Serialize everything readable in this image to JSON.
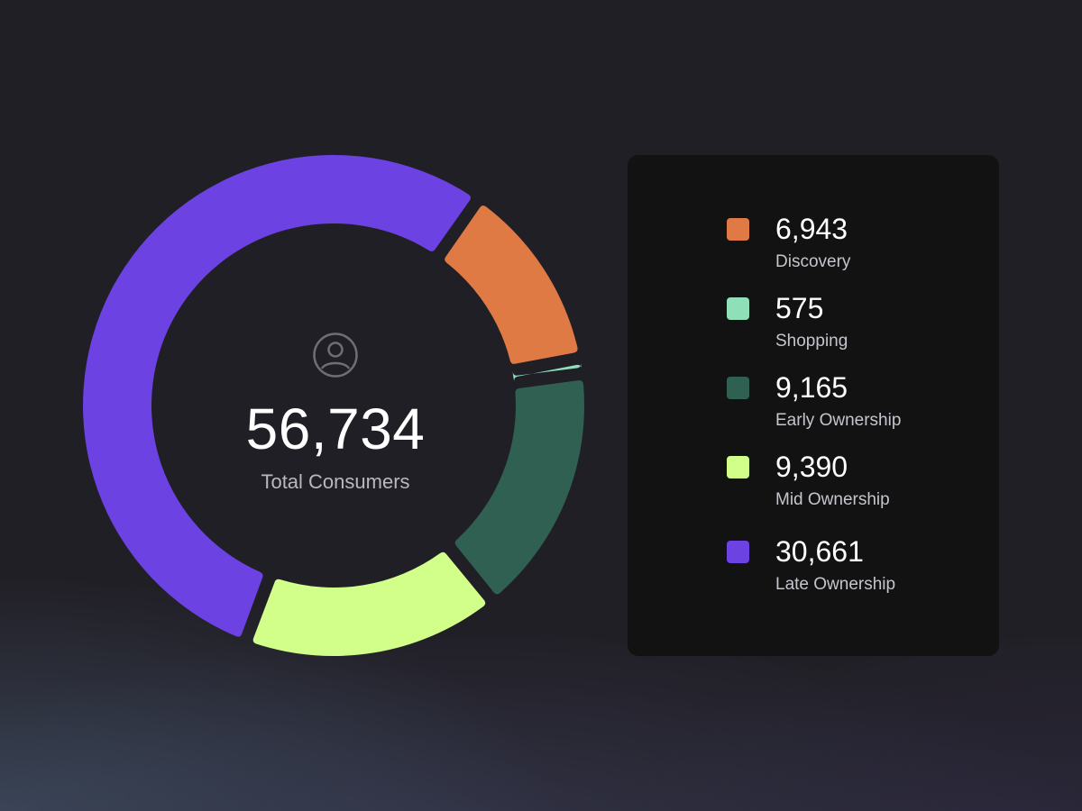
{
  "chart_data": {
    "type": "pie",
    "variant": "donut",
    "center_value": "56,734",
    "center_label": "Total Consumers",
    "center_icon": "user-circle-icon",
    "legend_position": "right",
    "slices": [
      {
        "label": "Discovery",
        "value": 6943,
        "display_value": "6,943",
        "color": "#e07a45"
      },
      {
        "label": "Shopping",
        "value": 575,
        "display_value": "575",
        "color": "#8fdfb8"
      },
      {
        "label": "Early Ownership",
        "value": 9165,
        "display_value": "9,165",
        "color": "#2f6051"
      },
      {
        "label": "Mid Ownership",
        "value": 9390,
        "display_value": "9,390",
        "color": "#d2ff8a"
      },
      {
        "label": "Late Ownership",
        "value": 30661,
        "display_value": "30,661",
        "color": "#6c42e3"
      }
    ]
  }
}
